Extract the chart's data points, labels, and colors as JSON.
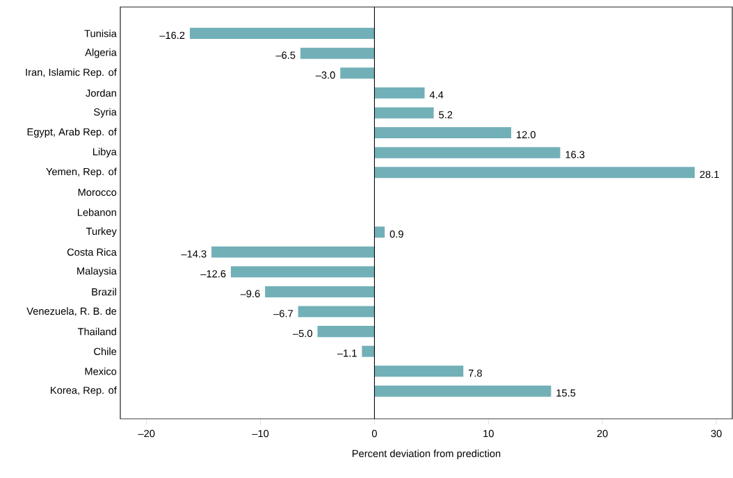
{
  "chart_data": {
    "type": "bar",
    "orientation": "horizontal",
    "color": "#72b0b8",
    "categories": [
      "Tunisia",
      "Algeria",
      "Iran, Islamic Rep. of",
      "Jordan",
      "Syria",
      "Egypt, Arab Rep. of",
      "Libya",
      "Yemen, Rep. of",
      "Morocco",
      "Lebanon",
      "Turkey",
      "Costa Rica",
      "Malaysia",
      "Brazil",
      "Venezuela, R. B. de",
      "Thailand",
      "Chile",
      "Mexico",
      "Korea, Rep. of"
    ],
    "values": [
      -16.2,
      -6.5,
      -3.0,
      4.4,
      5.2,
      12.0,
      16.3,
      28.1,
      null,
      null,
      0.9,
      -14.3,
      -12.6,
      -9.6,
      -6.7,
      -5.0,
      -1.1,
      7.8,
      15.5
    ],
    "value_labels": [
      "–16.2",
      "–6.5",
      "–3.0",
      "4.4",
      "5.2",
      "12.0",
      "16.3",
      "28.1",
      null,
      null,
      "0.9",
      "–14.3",
      "–12.6",
      "–9.6",
      "–6.7",
      "–5.0",
      "–1.1",
      "7.8",
      "15.5"
    ],
    "xlim": [
      -22.3,
      31.4
    ],
    "xticks": [
      {
        "value": -20,
        "label": "–20"
      },
      {
        "value": -10,
        "label": "–10"
      },
      0,
      10,
      20,
      30
    ],
    "xlabel": "Percent deviation from prediction"
  }
}
